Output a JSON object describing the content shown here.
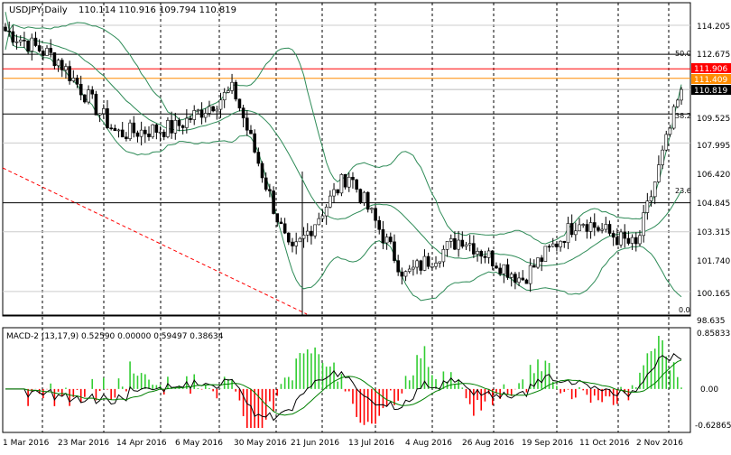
{
  "colors": {
    "background": "#ffffff",
    "axis": "#000000",
    "grid": "#000000",
    "bull_candle": "#ffffff",
    "bear_candle": "#000000",
    "bollinger": "#2e8b57",
    "fib_line": "#000000",
    "red_level": "#ff0000",
    "orange_level": "#ff8c00",
    "price_tag": "#000000",
    "red_tag": "#ff0000",
    "orange_tag": "#ff8c00",
    "trendline": "#ff0000",
    "macd_pos": "#32cd32",
    "macd_neg": "#ff0000",
    "macd_line": "#000000",
    "signal_line": "#008000"
  },
  "header": {
    "symbol": "USDJPY,Daily",
    "ohlc": "110.114 110.916 109.794 110.819"
  },
  "main": {
    "y_ticks": [
      "114.205",
      "112.675",
      "111.906",
      "111.409",
      "110.819",
      "109.525",
      "107.995",
      "106.420",
      "104.845",
      "103.315",
      "101.740",
      "100.165",
      "98.635"
    ],
    "fib_labels": [
      "50.0",
      "38.2",
      "23.6",
      "0.0"
    ]
  },
  "macd": {
    "label": "MACD-2 (13,17,9) 0.52590 0.00000 0.59497 0.38634",
    "y_ticks": [
      "0.85833",
      "0.00",
      "-0.62865"
    ]
  },
  "x_labels": [
    "1 Mar 2016",
    "23 Mar 2016",
    "14 Apr 2016",
    "6 May 2016",
    "30 May 2016",
    "21 Jun 2016",
    "13 Jul 2016",
    "4 Aug 2016",
    "26 Aug 2016",
    "19 Sep 2016",
    "11 Oct 2016",
    "2 Nov 2016"
  ],
  "chart_data": {
    "type": "line",
    "title": "USDJPY,Daily",
    "x": [
      "1 Mar 2016",
      "23 Mar 2016",
      "14 Apr 2016",
      "6 May 2016",
      "30 May 2016",
      "21 Jun 2016",
      "13 Jul 2016",
      "4 Aug 2016",
      "26 Aug 2016",
      "19 Sep 2016",
      "11 Oct 2016",
      "2 Nov 2016",
      "10 Nov 2016"
    ],
    "series": [
      {
        "name": "USDJPY",
        "values": [
          114.0,
          112.4,
          108.5,
          108.8,
          110.8,
          102.0,
          106.4,
          101.0,
          103.0,
          100.8,
          104.0,
          102.5,
          110.819
        ]
      }
    ],
    "ohlc": {
      "open": 110.114,
      "high": 110.916,
      "low": 109.794,
      "close": 110.819
    },
    "ylim": [
      98.635,
      114.205
    ],
    "horizontal_levels": [
      112.675,
      111.906,
      111.409,
      110.819,
      109.525,
      104.845,
      98.635
    ],
    "macd": {
      "name": "MACD-2 (13,17,9)",
      "values": [
        0.5259,
        0.0,
        0.59497,
        0.38634
      ],
      "ylim": [
        -0.62865,
        0.85833
      ]
    },
    "grid": true
  }
}
